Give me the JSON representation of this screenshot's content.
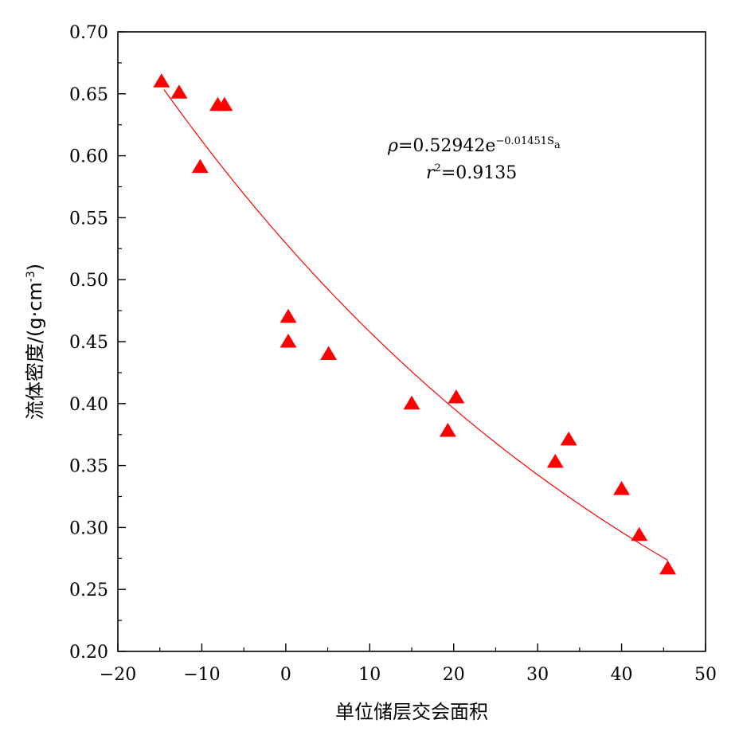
{
  "chart_data": {
    "type": "scatter",
    "title": "",
    "xlabel": "单位储层交会面积",
    "ylabel": "流体密度/(g·cm",
    "ylabel_sup": "-3",
    "ylabel_close": ")",
    "xlim": [
      -20,
      50
    ],
    "ylim": [
      0.2,
      0.7
    ],
    "x_ticks": [
      -20,
      -10,
      0,
      10,
      20,
      30,
      40,
      50
    ],
    "x_tick_labels": [
      "−20",
      "−10",
      "0",
      "10",
      "20",
      "30",
      "40",
      "50"
    ],
    "y_ticks": [
      0.2,
      0.25,
      0.3,
      0.35,
      0.4,
      0.45,
      0.5,
      0.55,
      0.6,
      0.65,
      0.7
    ],
    "y_tick_labels": [
      "0.20",
      "0.25",
      "0.30",
      "0.35",
      "0.40",
      "0.45",
      "0.50",
      "0.55",
      "0.60",
      "0.65",
      "0.70"
    ],
    "grid": false,
    "legend": "none",
    "marker": "triangle",
    "marker_color": "#ff0000",
    "series": [
      {
        "points": [
          [
            -14.8,
            0.66
          ],
          [
            -12.7,
            0.651
          ],
          [
            -10.2,
            0.591
          ],
          [
            -8.1,
            0.641
          ],
          [
            -7.3,
            0.641
          ],
          [
            0.3,
            0.47
          ],
          [
            0.3,
            0.45
          ],
          [
            5.1,
            0.44
          ],
          [
            15.0,
            0.4
          ],
          [
            19.3,
            0.378
          ],
          [
            20.3,
            0.405
          ],
          [
            32.1,
            0.353
          ],
          [
            33.7,
            0.371
          ],
          [
            40.0,
            0.331
          ],
          [
            42.1,
            0.294
          ],
          [
            45.5,
            0.267
          ]
        ]
      }
    ],
    "fit": {
      "model": "exponential",
      "a": 0.52942,
      "b": -0.01451,
      "x_range": [
        -14.5,
        45.5
      ],
      "color": "#ff0000"
    },
    "annotations": {
      "equation_lhs": "ρ",
      "equation_mid": "=0.52942e",
      "equation_exp": "−0.01451S",
      "equation_exp_sub": "a",
      "r2_lhs": "r",
      "r2_sup": "2",
      "r2_rhs": "=0.9135"
    }
  }
}
